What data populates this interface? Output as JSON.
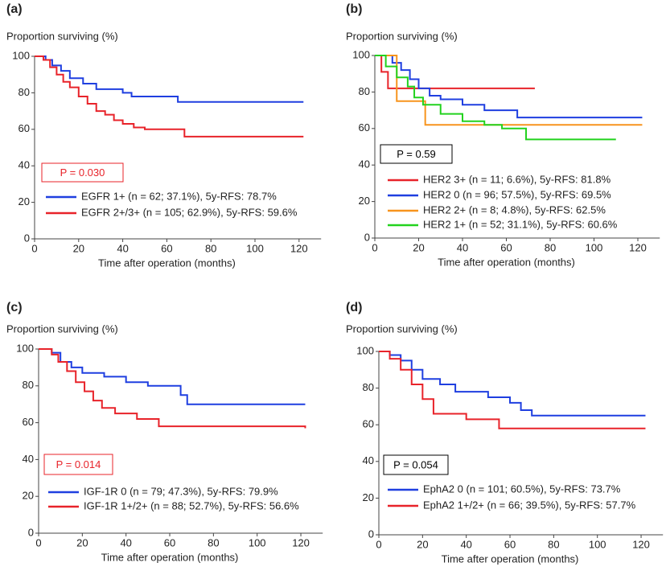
{
  "chart_data": [
    {
      "type": "step",
      "title": "(a)",
      "y_label": "Proportion surviving (%)",
      "x_label": "Time after operation (months)",
      "annotation": "P = 0.030",
      "annotation_color": "#e8232a",
      "legend": "lower left",
      "xlim": [
        0,
        130
      ],
      "ylim": [
        0,
        100
      ],
      "xticks": [
        0,
        20,
        40,
        60,
        80,
        100,
        120
      ],
      "yticks": [
        0,
        20,
        40,
        60,
        80,
        100
      ],
      "series": [
        {
          "name": "EGFR 1+ (n = 62; 37.1%), 5y-RFS: 78.7%",
          "color": "#1f3fe0",
          "x": [
            0,
            5,
            8,
            12,
            16,
            22,
            28,
            40,
            44,
            65,
            122
          ],
          "values": [
            100,
            98,
            95,
            92,
            88,
            85,
            82,
            80,
            78,
            75,
            75
          ]
        },
        {
          "name": "EGFR 2+/3+ (n = 105; 62.9%), 5y-RFS: 59.6%",
          "color": "#e8232a",
          "x": [
            0,
            4,
            7,
            10,
            13,
            16,
            20,
            24,
            28,
            32,
            36,
            40,
            45,
            50,
            68,
            122
          ],
          "values": [
            100,
            98,
            94,
            90,
            86,
            83,
            78,
            74,
            70,
            68,
            65,
            63,
            61,
            60,
            56,
            56
          ]
        }
      ]
    },
    {
      "type": "step",
      "title": "(b)",
      "y_label": "Proportion surviving (%)",
      "x_label": "Time after operation (months)",
      "annotation": "P = 0.59",
      "annotation_color": "#000000",
      "legend": "lower left",
      "xlim": [
        0,
        130
      ],
      "ylim": [
        0,
        100
      ],
      "xticks": [
        0,
        20,
        40,
        60,
        80,
        100,
        120
      ],
      "yticks": [
        0,
        20,
        40,
        60,
        80,
        100
      ],
      "series": [
        {
          "name": "HER2 3+ (n = 11; 6.6%), 5y-RFS: 81.8%",
          "color": "#e8232a",
          "x": [
            0,
            3,
            6,
            73
          ],
          "values": [
            100,
            91,
            82,
            82
          ]
        },
        {
          "name": "HER2 0 (n = 96; 57.5%), 5y-RFS: 69.5%",
          "color": "#1f3fe0",
          "x": [
            0,
            8,
            12,
            16,
            20,
            25,
            30,
            40,
            50,
            65,
            122
          ],
          "values": [
            100,
            96,
            92,
            87,
            82,
            78,
            76,
            73,
            70,
            66,
            66
          ]
        },
        {
          "name": "HER2 2+ (n = 8; 4.8%), 5y-RFS: 62.5%",
          "color": "#f7941d",
          "x": [
            0,
            10,
            23,
            122
          ],
          "values": [
            100,
            75,
            62,
            62
          ]
        },
        {
          "name": "HER2 1+ (n = 52; 31.1%), 5y-RFS: 60.6%",
          "color": "#22d21e",
          "x": [
            0,
            5,
            10,
            15,
            18,
            22,
            30,
            40,
            50,
            58,
            69,
            110
          ],
          "values": [
            100,
            94,
            88,
            83,
            77,
            73,
            68,
            64,
            62,
            60,
            54,
            54
          ]
        }
      ]
    },
    {
      "type": "step",
      "title": "(c)",
      "y_label": "Proportion surviving (%)",
      "x_label": "Time after operation (months)",
      "annotation": "P = 0.014",
      "annotation_color": "#e8232a",
      "legend": "lower left",
      "xlim": [
        0,
        130
      ],
      "ylim": [
        0,
        100
      ],
      "xticks": [
        0,
        20,
        40,
        60,
        80,
        100,
        120
      ],
      "yticks": [
        0,
        20,
        40,
        60,
        80,
        100
      ],
      "series": [
        {
          "name": "IGF-1R 0 (n = 79; 47.3%), 5y-RFS: 79.9%",
          "color": "#1f3fe0",
          "x": [
            0,
            6,
            10,
            15,
            20,
            30,
            40,
            50,
            65,
            68,
            122
          ],
          "values": [
            100,
            98,
            93,
            90,
            87,
            85,
            82,
            80,
            75,
            70,
            70
          ]
        },
        {
          "name": "IGF-1R 1+/2+ (n = 88; 52.7%), 5y-RFS: 56.6%",
          "color": "#e8232a",
          "x": [
            0,
            6,
            9,
            13,
            17,
            21,
            25,
            29,
            35,
            45,
            55,
            122
          ],
          "values": [
            100,
            97,
            93,
            88,
            82,
            77,
            72,
            68,
            65,
            62,
            58,
            57
          ]
        }
      ]
    },
    {
      "type": "step",
      "title": "(d)",
      "y_label": "Proportion surviving (%)",
      "x_label": "Time after operation (months)",
      "annotation": "P = 0.054",
      "annotation_color": "#000000",
      "legend": "lower left",
      "xlim": [
        0,
        130
      ],
      "ylim": [
        0,
        100
      ],
      "xticks": [
        0,
        20,
        40,
        60,
        80,
        100,
        120
      ],
      "yticks": [
        0,
        20,
        40,
        60,
        80,
        100
      ],
      "series": [
        {
          "name": "EphA2 0 (n = 101; 60.5%), 5y-RFS: 73.7%",
          "color": "#1f3fe0",
          "x": [
            0,
            5,
            10,
            15,
            20,
            28,
            35,
            50,
            60,
            65,
            70,
            122
          ],
          "values": [
            100,
            98,
            95,
            90,
            85,
            82,
            78,
            75,
            72,
            68,
            65,
            65
          ]
        },
        {
          "name": "EphA2 1+/2+ (n = 66; 39.5%), 5y-RFS: 57.7%",
          "color": "#e8232a",
          "x": [
            0,
            5,
            10,
            15,
            20,
            25,
            40,
            55,
            122
          ],
          "values": [
            100,
            96,
            90,
            82,
            74,
            66,
            63,
            58,
            58
          ]
        }
      ]
    }
  ]
}
